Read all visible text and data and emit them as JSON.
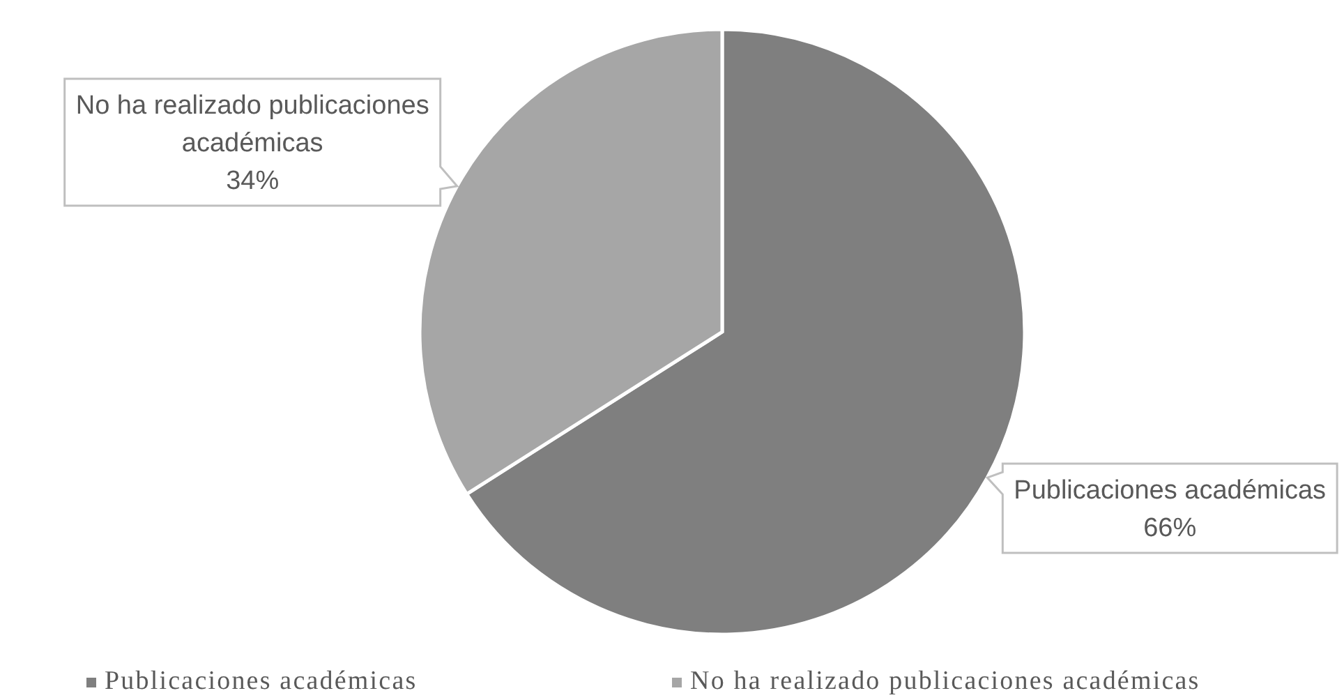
{
  "chart_data": {
    "type": "pie",
    "categories": [
      "Publicaciones académicas",
      "No ha realizado publicaciones académicas"
    ],
    "values": [
      66,
      34
    ],
    "value_labels": [
      "66%",
      "34%"
    ],
    "colors": [
      "#7f7f7f",
      "#a6a6a6"
    ],
    "legend": "bottom"
  }
}
